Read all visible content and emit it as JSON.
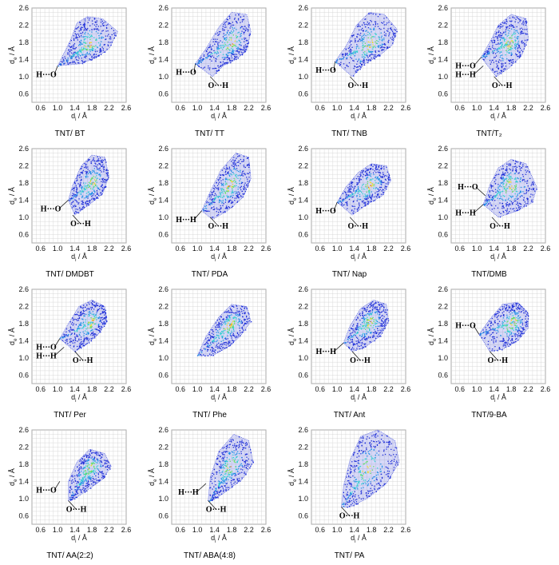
{
  "axis": {
    "x_label": "d",
    "x_label_sub": "i",
    "y_label": "d",
    "y_label_sub": "e",
    "unit": " / Å",
    "ticks": [
      "0.6",
      "1.0",
      "1.4",
      "1.8",
      "2.2",
      "2.6"
    ]
  },
  "colormap": [
    "#1f2fd8",
    "#1f8fe6",
    "#2fd0d0",
    "#5ee05e",
    "#f0e020",
    "#f07010"
  ],
  "chart_data": [
    {
      "type": "scatter",
      "title": "TNT/ BT",
      "xlim": [
        0.4,
        2.6
      ],
      "ylim": [
        0.4,
        2.6
      ],
      "annotations": [
        {
          "text": "H···O",
          "point": [
            1.0,
            1.25
          ]
        }
      ],
      "cloud": {
        "tip": [
          1.0,
          1.25
        ],
        "outline": [
          [
            1.1,
            1.45
          ],
          [
            1.3,
            1.85
          ],
          [
            1.45,
            2.25
          ],
          [
            1.7,
            2.4
          ],
          [
            2.05,
            2.35
          ],
          [
            2.4,
            2.05
          ],
          [
            2.2,
            1.65
          ],
          [
            1.9,
            1.45
          ],
          [
            1.55,
            1.3
          ]
        ],
        "peak": [
          1.75,
          1.75
        ]
      }
    },
    {
      "type": "scatter",
      "title": "TNT/ TT",
      "xlim": [
        0.4,
        2.6
      ],
      "ylim": [
        0.4,
        2.6
      ],
      "annotations": [
        {
          "text": "H···O",
          "point": [
            0.95,
            1.3
          ]
        },
        {
          "text": "O···H",
          "point": [
            1.3,
            1.0
          ]
        }
      ],
      "cloud": {
        "tip": [
          0.95,
          1.3
        ],
        "outline": [
          [
            1.2,
            1.65
          ],
          [
            1.5,
            2.15
          ],
          [
            1.8,
            2.5
          ],
          [
            2.15,
            2.45
          ],
          [
            2.25,
            2.05
          ],
          [
            2.15,
            1.6
          ],
          [
            1.9,
            1.4
          ],
          [
            1.6,
            1.25
          ],
          [
            1.35,
            1.0
          ]
        ],
        "peak": [
          1.8,
          1.8
        ]
      }
    },
    {
      "type": "scatter",
      "title": "TNT/ TNB",
      "xlim": [
        0.4,
        2.6
      ],
      "ylim": [
        0.4,
        2.6
      ],
      "annotations": [
        {
          "text": "H···O",
          "point": [
            0.95,
            1.35
          ]
        },
        {
          "text": "O···H",
          "point": [
            1.3,
            1.0
          ]
        }
      ],
      "cloud": {
        "tip": [
          0.95,
          1.35
        ],
        "outline": [
          [
            1.2,
            1.7
          ],
          [
            1.45,
            2.2
          ],
          [
            1.75,
            2.5
          ],
          [
            2.1,
            2.45
          ],
          [
            2.4,
            2.1
          ],
          [
            2.3,
            1.75
          ],
          [
            2.0,
            1.5
          ],
          [
            1.65,
            1.3
          ],
          [
            1.35,
            1.0
          ]
        ],
        "peak": [
          1.75,
          1.75
        ]
      }
    },
    {
      "type": "scatter",
      "title": "TNT/T₂",
      "xlim": [
        0.4,
        2.6
      ],
      "ylim": [
        0.4,
        2.6
      ],
      "annotations": [
        {
          "text": "H···O",
          "point": [
            1.1,
            1.45
          ]
        },
        {
          "text": "H···H",
          "point": [
            1.15,
            1.25
          ]
        },
        {
          "text": "O···H",
          "point": [
            1.4,
            1.0
          ]
        }
      ],
      "cloud": {
        "tip": [
          1.1,
          1.45
        ],
        "outline": [
          [
            1.3,
            1.8
          ],
          [
            1.5,
            2.2
          ],
          [
            1.8,
            2.45
          ],
          [
            2.15,
            2.35
          ],
          [
            2.2,
            1.9
          ],
          [
            2.05,
            1.5
          ],
          [
            1.75,
            1.2
          ],
          [
            1.45,
            1.0
          ]
        ],
        "peak": [
          1.75,
          1.8
        ]
      }
    },
    {
      "type": "scatter",
      "title": "TNT/ DMDBT",
      "xlim": [
        0.4,
        2.6
      ],
      "ylim": [
        0.4,
        2.6
      ],
      "annotations": [
        {
          "text": "H···O",
          "point": [
            1.25,
            1.4
          ]
        },
        {
          "text": "O···H",
          "point": [
            1.35,
            1.05
          ]
        }
      ],
      "cloud": {
        "tip": [
          1.25,
          1.4
        ],
        "outline": [
          [
            1.35,
            1.75
          ],
          [
            1.55,
            2.2
          ],
          [
            1.8,
            2.45
          ],
          [
            2.1,
            2.4
          ],
          [
            2.2,
            1.95
          ],
          [
            2.05,
            1.55
          ],
          [
            1.75,
            1.3
          ],
          [
            1.4,
            1.05
          ]
        ],
        "peak": [
          1.8,
          1.8
        ]
      }
    },
    {
      "type": "scatter",
      "title": "TNT/ PDA",
      "xlim": [
        0.4,
        2.6
      ],
      "ylim": [
        0.4,
        2.6
      ],
      "annotations": [
        {
          "text": "H···H",
          "point": [
            1.1,
            1.15
          ]
        },
        {
          "text": "O···H",
          "point": [
            1.3,
            1.0
          ]
        }
      ],
      "cloud": {
        "tip": [
          1.1,
          1.15
        ],
        "outline": [
          [
            1.3,
            1.6
          ],
          [
            1.55,
            2.1
          ],
          [
            1.9,
            2.5
          ],
          [
            2.2,
            2.4
          ],
          [
            2.25,
            1.9
          ],
          [
            2.05,
            1.45
          ],
          [
            1.7,
            1.15
          ],
          [
            1.35,
            0.95
          ]
        ],
        "peak": [
          1.75,
          1.75
        ]
      }
    },
    {
      "type": "scatter",
      "title": "TNT/ Nap",
      "xlim": [
        0.4,
        2.6
      ],
      "ylim": [
        0.4,
        2.6
      ],
      "annotations": [
        {
          "text": "H···O",
          "point": [
            1.0,
            1.35
          ]
        },
        {
          "text": "O···H",
          "point": [
            1.3,
            1.0
          ]
        }
      ],
      "cloud": {
        "tip": [
          1.0,
          1.35
        ],
        "outline": [
          [
            1.2,
            1.7
          ],
          [
            1.5,
            2.05
          ],
          [
            1.8,
            2.25
          ],
          [
            2.15,
            2.2
          ],
          [
            2.25,
            1.85
          ],
          [
            2.05,
            1.5
          ],
          [
            1.7,
            1.3
          ],
          [
            1.35,
            1.05
          ]
        ],
        "peak": [
          1.75,
          1.75
        ]
      }
    },
    {
      "type": "scatter",
      "title": "TNT/DMB",
      "xlim": [
        0.4,
        2.6
      ],
      "ylim": [
        0.4,
        2.6
      ],
      "annotations": [
        {
          "text": "H···O",
          "point": [
            1.2,
            1.5
          ]
        },
        {
          "text": "H···H",
          "point": [
            1.15,
            1.3
          ]
        },
        {
          "text": "O···H",
          "point": [
            1.35,
            1.0
          ]
        }
      ],
      "cloud": {
        "tip": [
          1.15,
          1.3
        ],
        "outline": [
          [
            1.3,
            1.75
          ],
          [
            1.5,
            2.15
          ],
          [
            1.8,
            2.35
          ],
          [
            2.15,
            2.25
          ],
          [
            2.4,
            1.7
          ],
          [
            2.3,
            1.35
          ],
          [
            1.95,
            1.15
          ],
          [
            1.5,
            1.0
          ]
        ],
        "peak": [
          1.75,
          1.75
        ]
      }
    },
    {
      "type": "scatter",
      "title": "TNT/ Per",
      "xlim": [
        0.4,
        2.6
      ],
      "ylim": [
        0.4,
        2.6
      ],
      "annotations": [
        {
          "text": "H···O",
          "point": [
            1.05,
            1.45
          ]
        },
        {
          "text": "H···H",
          "point": [
            1.15,
            1.25
          ]
        },
        {
          "text": "O···H",
          "point": [
            1.4,
            1.15
          ]
        }
      ],
      "cloud": {
        "tip": [
          1.05,
          1.45
        ],
        "outline": [
          [
            1.25,
            1.8
          ],
          [
            1.5,
            2.2
          ],
          [
            1.8,
            2.35
          ],
          [
            2.1,
            2.2
          ],
          [
            2.15,
            1.85
          ],
          [
            1.95,
            1.55
          ],
          [
            1.65,
            1.3
          ],
          [
            1.4,
            1.15
          ]
        ],
        "peak": [
          1.8,
          1.85
        ]
      }
    },
    {
      "type": "scatter",
      "title": "TNT/ Phe",
      "xlim": [
        0.4,
        2.6
      ],
      "ylim": [
        0.4,
        2.6
      ],
      "annotations": [],
      "cloud": {
        "tip": [
          1.0,
          1.05
        ],
        "outline": [
          [
            1.2,
            1.5
          ],
          [
            1.5,
            1.95
          ],
          [
            1.8,
            2.25
          ],
          [
            2.15,
            2.2
          ],
          [
            2.25,
            1.85
          ],
          [
            2.0,
            1.5
          ],
          [
            1.7,
            1.25
          ],
          [
            1.35,
            1.05
          ]
        ],
        "peak": [
          1.75,
          1.8
        ]
      }
    },
    {
      "type": "scatter",
      "title": "TNT/ Ant",
      "xlim": [
        0.4,
        2.6
      ],
      "ylim": [
        0.4,
        2.6
      ],
      "annotations": [
        {
          "text": "H···H",
          "point": [
            1.15,
            1.35
          ]
        },
        {
          "text": "O···H",
          "point": [
            1.35,
            1.15
          ]
        }
      ],
      "cloud": {
        "tip": [
          1.15,
          1.35
        ],
        "outline": [
          [
            1.3,
            1.75
          ],
          [
            1.55,
            2.15
          ],
          [
            1.85,
            2.35
          ],
          [
            2.15,
            2.25
          ],
          [
            2.2,
            1.85
          ],
          [
            2.0,
            1.5
          ],
          [
            1.65,
            1.25
          ],
          [
            1.35,
            1.15
          ]
        ],
        "peak": [
          1.75,
          1.85
        ]
      }
    },
    {
      "type": "scatter",
      "title": "TNT/9-BA",
      "xlim": [
        0.4,
        2.6
      ],
      "ylim": [
        0.4,
        2.6
      ],
      "annotations": [
        {
          "text": "H···O",
          "point": [
            1.05,
            1.55
          ]
        },
        {
          "text": "O···H",
          "point": [
            1.3,
            1.15
          ]
        }
      ],
      "cloud": {
        "tip": [
          1.05,
          1.55
        ],
        "outline": [
          [
            1.3,
            1.9
          ],
          [
            1.6,
            2.25
          ],
          [
            1.95,
            2.3
          ],
          [
            2.2,
            2.05
          ],
          [
            2.2,
            1.7
          ],
          [
            1.95,
            1.4
          ],
          [
            1.6,
            1.2
          ],
          [
            1.3,
            1.15
          ]
        ],
        "peak": [
          1.85,
          1.85
        ]
      }
    },
    {
      "type": "scatter",
      "title": "TNT/ AA(2:2)",
      "xlim": [
        0.4,
        2.6
      ],
      "ylim": [
        0.4,
        2.6
      ],
      "annotations": [
        {
          "text": "H···O",
          "point": [
            1.05,
            1.4
          ]
        },
        {
          "text": "O···H",
          "point": [
            1.25,
            0.95
          ]
        }
      ],
      "cloud": {
        "tip": [
          1.25,
          0.95
        ],
        "outline": [
          [
            1.25,
            1.4
          ],
          [
            1.45,
            1.85
          ],
          [
            1.75,
            2.15
          ],
          [
            2.1,
            2.05
          ],
          [
            2.25,
            1.75
          ],
          [
            2.05,
            1.45
          ],
          [
            1.7,
            1.2
          ],
          [
            1.4,
            1.0
          ]
        ],
        "peak": [
          1.75,
          1.75
        ]
      }
    },
    {
      "type": "scatter",
      "title": "TNT/ ABA(4:8)",
      "xlim": [
        0.4,
        2.6
      ],
      "ylim": [
        0.4,
        2.6
      ],
      "annotations": [
        {
          "text": "H···H",
          "point": [
            1.2,
            1.35
          ]
        },
        {
          "text": "O···H",
          "point": [
            1.25,
            0.95
          ]
        }
      ],
      "cloud": {
        "tip": [
          1.25,
          0.95
        ],
        "outline": [
          [
            1.3,
            1.5
          ],
          [
            1.5,
            2.1
          ],
          [
            1.85,
            2.5
          ],
          [
            2.2,
            2.35
          ],
          [
            2.3,
            1.85
          ],
          [
            2.05,
            1.45
          ],
          [
            1.65,
            1.15
          ],
          [
            1.35,
            0.95
          ]
        ],
        "peak": [
          1.75,
          1.75
        ]
      }
    },
    {
      "type": "scatter",
      "title": "TNT/ PA",
      "xlim": [
        0.4,
        2.6
      ],
      "ylim": [
        0.4,
        2.6
      ],
      "annotations": [
        {
          "text": "O···H",
          "point": [
            1.1,
            0.8
          ]
        }
      ],
      "cloud": {
        "tip": [
          1.1,
          0.8
        ],
        "outline": [
          [
            1.15,
            1.3
          ],
          [
            1.3,
            1.9
          ],
          [
            1.55,
            2.45
          ],
          [
            1.95,
            2.6
          ],
          [
            2.35,
            2.35
          ],
          [
            2.45,
            1.85
          ],
          [
            2.15,
            1.35
          ],
          [
            1.7,
            1.0
          ],
          [
            1.3,
            0.8
          ]
        ],
        "peak": [
          1.65,
          1.65
        ]
      }
    }
  ]
}
